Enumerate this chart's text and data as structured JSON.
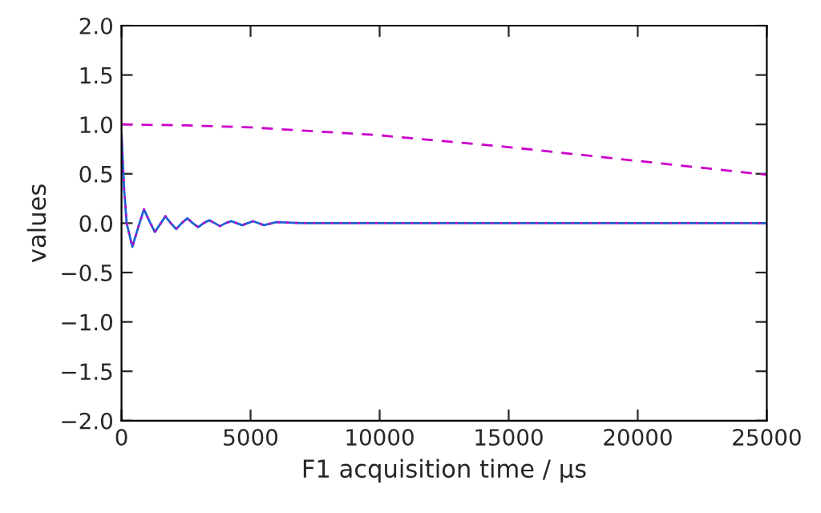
{
  "chart_data": {
    "type": "line",
    "xlabel": "F1 acquisition time / µs",
    "ylabel": "values",
    "xlim": [
      0,
      25000
    ],
    "ylim": [
      -2.0,
      2.0
    ],
    "xticks": [
      0,
      5000,
      10000,
      15000,
      20000,
      25000
    ],
    "yticks": [
      {
        "value": -2.0,
        "label": "−2.0"
      },
      {
        "value": -1.5,
        "label": "−1.5"
      },
      {
        "value": -1.0,
        "label": "−1.0"
      },
      {
        "value": -0.5,
        "label": "−0.5"
      },
      {
        "value": 0.0,
        "label": "0.0"
      },
      {
        "value": 0.5,
        "label": "0.5"
      },
      {
        "value": 1.0,
        "label": "1.0"
      },
      {
        "value": 1.5,
        "label": "1.5"
      },
      {
        "value": 2.0,
        "label": "2.0"
      }
    ],
    "grid": false,
    "legend": false,
    "series": [
      {
        "color": "#1f5fd0",
        "line_style": "solid",
        "x": [
          0,
          100,
          200,
          420,
          650,
          870,
          1080,
          1290,
          1500,
          1700,
          1910,
          2120,
          2330,
          2550,
          2760,
          2970,
          3180,
          3400,
          3610,
          3820,
          4030,
          4250,
          4460,
          4680,
          4890,
          5100,
          5520,
          6000,
          7000,
          8000,
          10000,
          15000,
          20000,
          25000
        ],
        "values": [
          0.9,
          0.35,
          0.0,
          -0.24,
          -0.04,
          0.14,
          0.02,
          -0.09,
          -0.01,
          0.07,
          0.0,
          -0.06,
          0.0,
          0.05,
          0.0,
          -0.04,
          0.0,
          0.03,
          0.0,
          -0.03,
          0.0,
          0.02,
          0.0,
          -0.02,
          0.0,
          0.02,
          -0.02,
          0.01,
          0.0,
          0.0,
          0.0,
          0.0,
          0.0,
          0.0
        ]
      },
      {
        "color": "#cc00cc",
        "line_style": "dotted",
        "x": [
          0,
          100,
          200,
          420,
          650,
          870,
          1080,
          1290,
          1500,
          1700,
          1910,
          2120,
          2330,
          2550,
          2760,
          2970,
          3180,
          3400,
          3610,
          3820,
          4030,
          4250,
          4460,
          4680,
          4890,
          5100,
          5520,
          6000,
          7000,
          8000,
          10000,
          15000,
          20000,
          25000
        ],
        "values": [
          0.9,
          0.35,
          0.0,
          -0.24,
          -0.04,
          0.14,
          0.02,
          -0.09,
          -0.01,
          0.07,
          0.0,
          -0.06,
          0.0,
          0.05,
          0.0,
          -0.04,
          0.0,
          0.03,
          0.0,
          -0.03,
          0.0,
          0.02,
          0.0,
          -0.02,
          0.0,
          0.02,
          -0.02,
          0.01,
          0.0,
          0.0,
          0.0,
          0.0,
          0.0,
          0.0
        ]
      },
      {
        "color": "#cc00cc",
        "line_style": "dashed",
        "x": [
          0,
          2500,
          5000,
          7500,
          10000,
          12500,
          15000,
          17500,
          20000,
          22500,
          25000
        ],
        "values": [
          1.0,
          0.99,
          0.97,
          0.93,
          0.89,
          0.83,
          0.77,
          0.7,
          0.63,
          0.56,
          0.49
        ]
      }
    ]
  }
}
